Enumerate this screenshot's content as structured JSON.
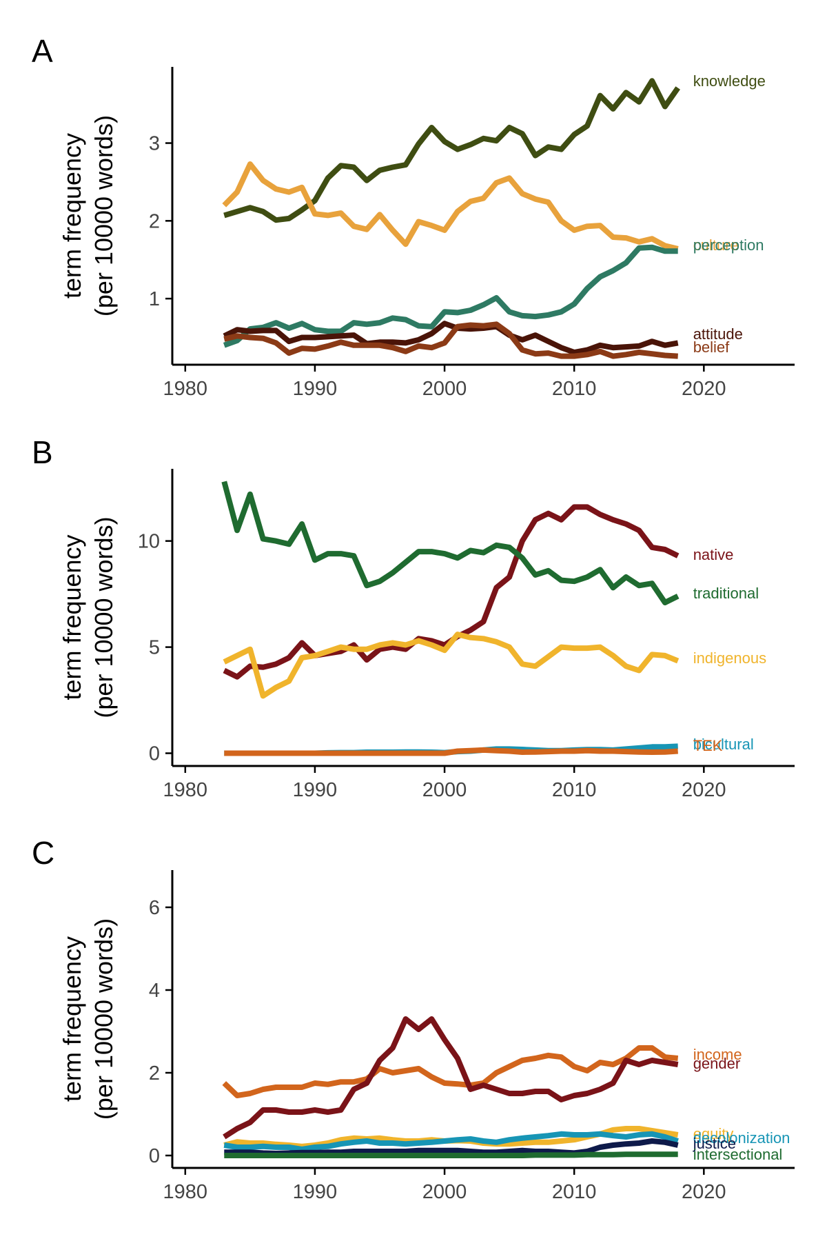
{
  "chart_data": [
    {
      "type": "line",
      "panel_label": "A",
      "ylabel": "term frequency\n(per 10000 words)",
      "xlim": [
        1979,
        2027
      ],
      "ylim": [
        0.15,
        3.98
      ],
      "x_ticks": [
        1980,
        1990,
        2000,
        2010,
        2020
      ],
      "y_ticks": [
        1,
        2,
        3
      ],
      "x": [
        1983,
        1984,
        1985,
        1986,
        1987,
        1988,
        1989,
        1990,
        1991,
        1992,
        1993,
        1994,
        1995,
        1996,
        1997,
        1998,
        1999,
        2000,
        2001,
        2002,
        2003,
        2004,
        2005,
        2006,
        2007,
        2008,
        2009,
        2010,
        2011,
        2012,
        2013,
        2014,
        2015,
        2016,
        2017,
        2018
      ],
      "series": [
        {
          "name": "knowledge",
          "color": "#3f4d12",
          "values": [
            2.07,
            2.12,
            2.17,
            2.12,
            2.01,
            2.03,
            2.14,
            2.26,
            2.55,
            2.71,
            2.69,
            2.52,
            2.65,
            2.69,
            2.72,
            2.99,
            3.2,
            3.02,
            2.92,
            2.98,
            3.06,
            3.03,
            3.2,
            3.12,
            2.84,
            2.95,
            2.92,
            3.11,
            3.22,
            3.61,
            3.44,
            3.65,
            3.53,
            3.8,
            3.47,
            3.71
          ]
        },
        {
          "name": "culture",
          "color": "#e8a23c",
          "values": [
            2.2,
            2.37,
            2.73,
            2.52,
            2.41,
            2.37,
            2.43,
            2.09,
            2.07,
            2.1,
            1.93,
            1.89,
            2.08,
            1.88,
            1.7,
            1.99,
            1.94,
            1.88,
            2.12,
            2.25,
            2.29,
            2.49,
            2.55,
            2.35,
            2.28,
            2.24,
            2.0,
            1.88,
            1.93,
            1.94,
            1.79,
            1.78,
            1.73,
            1.77,
            1.68,
            1.64
          ]
        },
        {
          "name": "perception",
          "color": "#2e7a63",
          "values": [
            0.4,
            0.46,
            0.61,
            0.63,
            0.69,
            0.62,
            0.68,
            0.6,
            0.58,
            0.58,
            0.69,
            0.67,
            0.69,
            0.75,
            0.73,
            0.65,
            0.64,
            0.83,
            0.82,
            0.85,
            0.92,
            1.01,
            0.83,
            0.78,
            0.77,
            0.79,
            0.83,
            0.93,
            1.13,
            1.28,
            1.36,
            1.46,
            1.65,
            1.66,
            1.61,
            1.61
          ]
        },
        {
          "name": "attitude",
          "color": "#4a1408",
          "values": [
            0.52,
            0.6,
            0.58,
            0.59,
            0.59,
            0.45,
            0.5,
            0.5,
            0.51,
            0.52,
            0.53,
            0.42,
            0.44,
            0.44,
            0.43,
            0.47,
            0.55,
            0.68,
            0.62,
            0.61,
            0.62,
            0.64,
            0.53,
            0.47,
            0.53,
            0.45,
            0.37,
            0.31,
            0.34,
            0.4,
            0.37,
            0.38,
            0.39,
            0.45,
            0.4,
            0.43
          ]
        },
        {
          "name": "belief",
          "color": "#8b3a16",
          "values": [
            0.48,
            0.52,
            0.5,
            0.49,
            0.43,
            0.3,
            0.36,
            0.35,
            0.39,
            0.44,
            0.4,
            0.4,
            0.4,
            0.37,
            0.32,
            0.39,
            0.37,
            0.43,
            0.64,
            0.66,
            0.65,
            0.67,
            0.55,
            0.34,
            0.29,
            0.3,
            0.26,
            0.26,
            0.28,
            0.32,
            0.26,
            0.28,
            0.31,
            0.29,
            0.27,
            0.26
          ]
        }
      ]
    },
    {
      "type": "line",
      "panel_label": "B",
      "ylabel": "term frequency\n(per 10000 words)",
      "xlim": [
        1979,
        2027
      ],
      "ylim": [
        -0.6,
        13.4
      ],
      "x_ticks": [
        1980,
        1990,
        2000,
        2010,
        2020
      ],
      "y_ticks": [
        0,
        5,
        10
      ],
      "x": [
        1983,
        1984,
        1985,
        1986,
        1987,
        1988,
        1989,
        1990,
        1991,
        1992,
        1993,
        1994,
        1995,
        1996,
        1997,
        1998,
        1999,
        2000,
        2001,
        2002,
        2003,
        2004,
        2005,
        2006,
        2007,
        2008,
        2009,
        2010,
        2011,
        2012,
        2013,
        2014,
        2015,
        2016,
        2017,
        2018
      ],
      "series": [
        {
          "name": "native",
          "color": "#7a1318",
          "values": [
            3.9,
            3.6,
            4.1,
            4.05,
            4.2,
            4.5,
            5.2,
            4.6,
            4.7,
            4.8,
            5.1,
            4.4,
            4.9,
            5.0,
            4.9,
            5.4,
            5.3,
            5.1,
            5.5,
            5.8,
            6.2,
            7.8,
            8.3,
            10.0,
            11.0,
            11.3,
            11.0,
            11.6,
            11.6,
            11.25,
            11.0,
            10.8,
            10.5,
            9.7,
            9.6,
            9.3
          ]
        },
        {
          "name": "traditional",
          "color": "#1f6b30",
          "values": [
            12.8,
            10.5,
            12.2,
            10.1,
            10.0,
            9.85,
            10.8,
            9.1,
            9.4,
            9.4,
            9.3,
            7.9,
            8.1,
            8.5,
            9.0,
            9.5,
            9.5,
            9.4,
            9.2,
            9.55,
            9.45,
            9.8,
            9.7,
            9.2,
            8.4,
            8.6,
            8.15,
            8.1,
            8.3,
            8.65,
            7.8,
            8.3,
            7.9,
            8.0,
            7.1,
            7.4
          ]
        },
        {
          "name": "indigenous",
          "color": "#f0b42c",
          "values": [
            4.3,
            4.6,
            4.9,
            2.7,
            3.1,
            3.4,
            4.5,
            4.6,
            4.8,
            5.0,
            4.9,
            4.9,
            5.1,
            5.2,
            5.1,
            5.3,
            5.1,
            4.85,
            5.6,
            5.45,
            5.4,
            5.25,
            5.0,
            4.2,
            4.1,
            4.55,
            5.0,
            4.95,
            4.95,
            5.0,
            4.6,
            4.1,
            3.9,
            4.65,
            4.6,
            4.35
          ]
        },
        {
          "name": "bicultural",
          "color": "#1795b5",
          "values": [
            0.0,
            0.0,
            0.0,
            0.0,
            0.0,
            0.0,
            0.0,
            0.0,
            0.02,
            0.03,
            0.03,
            0.05,
            0.05,
            0.05,
            0.06,
            0.06,
            0.05,
            0.03,
            0.08,
            0.1,
            0.15,
            0.2,
            0.2,
            0.18,
            0.15,
            0.12,
            0.12,
            0.15,
            0.17,
            0.17,
            0.15,
            0.2,
            0.25,
            0.3,
            0.3,
            0.33
          ]
        },
        {
          "name": "TEK",
          "color": "#d2651c",
          "values": [
            0.0,
            0.0,
            0.0,
            0.0,
            0.0,
            0.0,
            0.0,
            0.0,
            0.0,
            0.0,
            0.0,
            0.0,
            0.0,
            0.0,
            0.0,
            0.0,
            0.0,
            0.0,
            0.1,
            0.12,
            0.15,
            0.12,
            0.1,
            0.05,
            0.06,
            0.08,
            0.1,
            0.1,
            0.12,
            0.1,
            0.1,
            0.08,
            0.06,
            0.05,
            0.06,
            0.1
          ]
        }
      ]
    },
    {
      "type": "line",
      "panel_label": "C",
      "ylabel": "term frequency\n(per 10000 words)",
      "xlim": [
        1979,
        2027
      ],
      "ylim": [
        -0.3,
        6.9
      ],
      "x_ticks": [
        1980,
        1990,
        2000,
        2010,
        2020
      ],
      "y_ticks": [
        0,
        2,
        4,
        6
      ],
      "x": [
        1983,
        1984,
        1985,
        1986,
        1987,
        1988,
        1989,
        1990,
        1991,
        1992,
        1993,
        1994,
        1995,
        1996,
        1997,
        1998,
        1999,
        2000,
        2001,
        2002,
        2003,
        2004,
        2005,
        2006,
        2007,
        2008,
        2009,
        2010,
        2011,
        2012,
        2013,
        2014,
        2015,
        2016,
        2017,
        2018
      ],
      "series": [
        {
          "name": "income",
          "color": "#d2651c",
          "values": [
            1.75,
            1.45,
            1.5,
            1.6,
            1.65,
            1.65,
            1.65,
            1.75,
            1.72,
            1.78,
            1.78,
            1.85,
            2.1,
            2.0,
            2.05,
            2.1,
            1.9,
            1.75,
            1.73,
            1.7,
            1.75,
            2.0,
            2.15,
            2.3,
            2.35,
            2.42,
            2.38,
            2.15,
            2.05,
            2.25,
            2.2,
            2.35,
            2.6,
            2.6,
            2.38,
            2.35
          ]
        },
        {
          "name": "gender",
          "color": "#7a1318",
          "values": [
            0.45,
            0.65,
            0.8,
            1.1,
            1.1,
            1.05,
            1.05,
            1.1,
            1.05,
            1.1,
            1.6,
            1.75,
            2.3,
            2.6,
            3.3,
            3.05,
            3.3,
            2.8,
            2.35,
            1.6,
            1.7,
            1.6,
            1.5,
            1.5,
            1.55,
            1.55,
            1.35,
            1.45,
            1.5,
            1.6,
            1.75,
            2.3,
            2.2,
            2.3,
            2.25,
            2.2
          ]
        },
        {
          "name": "equity",
          "color": "#f0b42c",
          "values": [
            0.25,
            0.33,
            0.3,
            0.3,
            0.27,
            0.25,
            0.22,
            0.25,
            0.3,
            0.38,
            0.42,
            0.4,
            0.42,
            0.38,
            0.35,
            0.35,
            0.38,
            0.35,
            0.36,
            0.35,
            0.3,
            0.28,
            0.28,
            0.3,
            0.32,
            0.32,
            0.35,
            0.38,
            0.45,
            0.52,
            0.62,
            0.65,
            0.65,
            0.6,
            0.55,
            0.5
          ]
        },
        {
          "name": "decolonization",
          "color": "#1795b5",
          "values": [
            0.25,
            0.2,
            0.2,
            0.22,
            0.2,
            0.2,
            0.15,
            0.2,
            0.22,
            0.28,
            0.32,
            0.35,
            0.3,
            0.3,
            0.28,
            0.3,
            0.32,
            0.35,
            0.38,
            0.4,
            0.35,
            0.32,
            0.38,
            0.42,
            0.45,
            0.48,
            0.52,
            0.5,
            0.5,
            0.52,
            0.48,
            0.45,
            0.5,
            0.52,
            0.45,
            0.35
          ]
        },
        {
          "name": "justice",
          "color": "#0e1a4a",
          "values": [
            0.08,
            0.08,
            0.08,
            0.06,
            0.05,
            0.06,
            0.07,
            0.07,
            0.08,
            0.08,
            0.1,
            0.1,
            0.1,
            0.1,
            0.1,
            0.12,
            0.12,
            0.12,
            0.12,
            0.1,
            0.08,
            0.08,
            0.1,
            0.12,
            0.1,
            0.1,
            0.08,
            0.06,
            0.1,
            0.2,
            0.25,
            0.28,
            0.3,
            0.35,
            0.32,
            0.25
          ]
        },
        {
          "name": "intersectional",
          "color": "#1f6b30",
          "values": [
            0.0,
            0.0,
            0.0,
            0.0,
            0.0,
            0.0,
            0.0,
            0.0,
            0.0,
            0.0,
            0.0,
            0.0,
            0.0,
            0.0,
            0.0,
            0.0,
            0.0,
            0.0,
            0.0,
            0.0,
            0.0,
            0.0,
            0.0,
            0.0,
            0.01,
            0.01,
            0.01,
            0.01,
            0.02,
            0.02,
            0.02,
            0.03,
            0.03,
            0.03,
            0.03,
            0.03
          ]
        }
      ]
    }
  ]
}
